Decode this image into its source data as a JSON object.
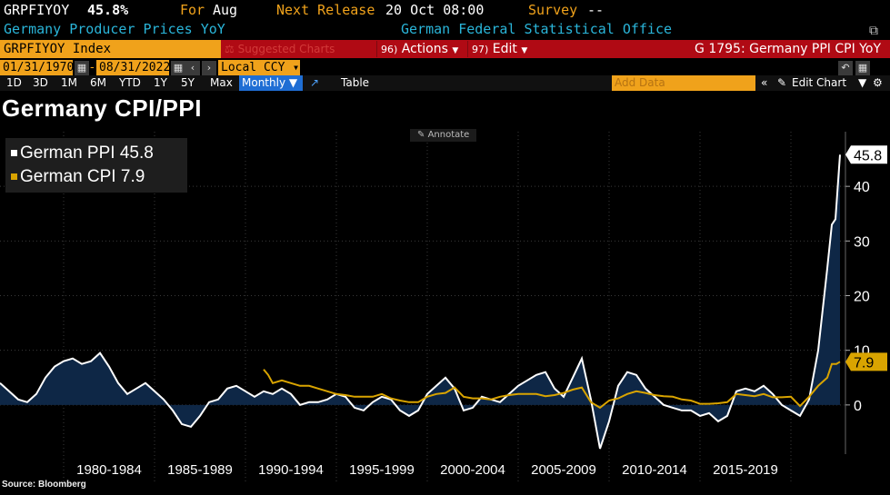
{
  "header": {
    "ticker": "GRPFIYOY",
    "value": "45.8%",
    "for_label": "For",
    "for_value": "Aug",
    "next_release_label": "Next Release",
    "next_release_value": "20 Oct 08:00",
    "survey_label": "Survey",
    "survey_value": "--",
    "description": "Germany Producer Prices YoY",
    "source": "German Federal Statistical Office"
  },
  "toolbar": {
    "ticker_field": "GRPFIYOY Index",
    "suggested": "⚖ Suggested Charts",
    "actions_num": "96)",
    "actions_label": "Actions",
    "edit_num": "97)",
    "edit_label": "Edit",
    "graph_title": "G 1795: Germany PPI CPI YoY"
  },
  "range": {
    "start_date": "01/31/1970",
    "end_date": "08/31/2022",
    "currency": "Local CCY"
  },
  "periods": [
    "1D",
    "3D",
    "1M",
    "6M",
    "YTD",
    "1Y",
    "5Y",
    "Max"
  ],
  "frequency": "Monthly ▼",
  "table_label": "Table",
  "add_data_placeholder": "Add Data",
  "edit_chart_label": "Edit Chart",
  "annotate_label": "Annotate",
  "chart_title": "Germany CPI/PPI",
  "source_note": "Source: Bloomberg",
  "colors": {
    "ppi": "#ffffff",
    "cpi": "#d9a400",
    "area": "#0e2746",
    "accent": "#f0a21b",
    "bar": "#b00a14"
  },
  "chart_data": {
    "type": "line",
    "x_unit": "year",
    "xlim": [
      1976.5,
      2023.0
    ],
    "ylim": [
      -9,
      50
    ],
    "y_ticks": [
      0,
      10,
      20,
      30,
      40
    ],
    "x_tick_labels": [
      "1980-1984",
      "1985-1989",
      "1990-1994",
      "1995-1999",
      "2000-2004",
      "2005-2009",
      "2010-2014",
      "2015-2019"
    ],
    "grid": true,
    "legend_position": "top-left",
    "series": [
      {
        "name": "German PPI",
        "last_value_label": "45.8",
        "last_value": 45.8,
        "points": [
          [
            1976.5,
            4
          ],
          [
            1977.0,
            2.5
          ],
          [
            1977.5,
            1
          ],
          [
            1978.0,
            0.5
          ],
          [
            1978.5,
            2
          ],
          [
            1979.0,
            5
          ],
          [
            1979.5,
            7
          ],
          [
            1980.0,
            8
          ],
          [
            1980.5,
            8.5
          ],
          [
            1981.0,
            7.5
          ],
          [
            1981.5,
            8
          ],
          [
            1982.0,
            9.5
          ],
          [
            1982.5,
            7
          ],
          [
            1983.0,
            4
          ],
          [
            1983.5,
            2
          ],
          [
            1984.0,
            3
          ],
          [
            1984.5,
            4
          ],
          [
            1985.0,
            2.5
          ],
          [
            1985.5,
            1
          ],
          [
            1986.0,
            -1
          ],
          [
            1986.5,
            -3.5
          ],
          [
            1987.0,
            -4
          ],
          [
            1987.5,
            -2
          ],
          [
            1988.0,
            0.5
          ],
          [
            1988.5,
            1
          ],
          [
            1989.0,
            3
          ],
          [
            1989.5,
            3.5
          ],
          [
            1990.0,
            2.5
          ],
          [
            1990.5,
            1.5
          ],
          [
            1991.0,
            2.5
          ],
          [
            1991.5,
            2
          ],
          [
            1992.0,
            3
          ],
          [
            1992.5,
            2
          ],
          [
            1993.0,
            0
          ],
          [
            1993.5,
            0.5
          ],
          [
            1994.0,
            0.5
          ],
          [
            1994.5,
            1
          ],
          [
            1995.0,
            2
          ],
          [
            1995.5,
            1.5
          ],
          [
            1996.0,
            -0.5
          ],
          [
            1996.5,
            -1
          ],
          [
            1997.0,
            0.5
          ],
          [
            1997.5,
            1.5
          ],
          [
            1998.0,
            1
          ],
          [
            1998.5,
            -1
          ],
          [
            1999.0,
            -2
          ],
          [
            1999.5,
            -1
          ],
          [
            2000.0,
            2
          ],
          [
            2000.5,
            3.5
          ],
          [
            2001.0,
            5
          ],
          [
            2001.5,
            3
          ],
          [
            2002.0,
            -1
          ],
          [
            2002.5,
            -0.5
          ],
          [
            2003.0,
            1.5
          ],
          [
            2003.5,
            1
          ],
          [
            2004.0,
            0.5
          ],
          [
            2004.5,
            2
          ],
          [
            2005.0,
            3.5
          ],
          [
            2005.5,
            4.5
          ],
          [
            2006.0,
            5.5
          ],
          [
            2006.5,
            6
          ],
          [
            2007.0,
            3
          ],
          [
            2007.5,
            1.5
          ],
          [
            2008.0,
            5
          ],
          [
            2008.5,
            8.5
          ],
          [
            2009.0,
            1
          ],
          [
            2009.5,
            -8
          ],
          [
            2010.0,
            -3
          ],
          [
            2010.5,
            3.5
          ],
          [
            2011.0,
            6
          ],
          [
            2011.5,
            5.5
          ],
          [
            2012.0,
            3
          ],
          [
            2012.5,
            1.5
          ],
          [
            2013.0,
            0
          ],
          [
            2013.5,
            -0.5
          ],
          [
            2014.0,
            -1
          ],
          [
            2014.5,
            -1
          ],
          [
            2015.0,
            -2
          ],
          [
            2015.5,
            -1.5
          ],
          [
            2016.0,
            -3
          ],
          [
            2016.5,
            -2
          ],
          [
            2017.0,
            2.5
          ],
          [
            2017.5,
            3
          ],
          [
            2018.0,
            2.5
          ],
          [
            2018.5,
            3.5
          ],
          [
            2019.0,
            2
          ],
          [
            2019.5,
            0
          ],
          [
            2020.0,
            -1
          ],
          [
            2020.5,
            -2
          ],
          [
            2021.0,
            1
          ],
          [
            2021.5,
            10
          ],
          [
            2022.0,
            25
          ],
          [
            2022.25,
            33
          ],
          [
            2022.45,
            34
          ],
          [
            2022.7,
            45.8
          ]
        ]
      },
      {
        "name": "German CPI",
        "last_value_label": "7.9",
        "last_value": 7.9,
        "points": [
          [
            1991.0,
            6.5
          ],
          [
            1991.25,
            5.5
          ],
          [
            1991.5,
            4
          ],
          [
            1992.0,
            4.5
          ],
          [
            1992.5,
            4
          ],
          [
            1993.0,
            3.5
          ],
          [
            1993.5,
            3.5
          ],
          [
            1994.0,
            3
          ],
          [
            1994.5,
            2.5
          ],
          [
            1995.0,
            2
          ],
          [
            1995.5,
            1.8
          ],
          [
            1996.0,
            1.5
          ],
          [
            1996.5,
            1.5
          ],
          [
            1997.0,
            1.5
          ],
          [
            1997.5,
            2
          ],
          [
            1998.0,
            1.2
          ],
          [
            1998.5,
            0.8
          ],
          [
            1999.0,
            0.5
          ],
          [
            1999.5,
            0.5
          ],
          [
            2000.0,
            1.5
          ],
          [
            2000.5,
            2
          ],
          [
            2001.0,
            2.2
          ],
          [
            2001.5,
            3.2
          ],
          [
            2002.0,
            1.5
          ],
          [
            2002.5,
            1.2
          ],
          [
            2003.0,
            1.2
          ],
          [
            2003.5,
            1
          ],
          [
            2004.0,
            1.5
          ],
          [
            2004.5,
            1.8
          ],
          [
            2005.0,
            2
          ],
          [
            2005.5,
            2
          ],
          [
            2006.0,
            2
          ],
          [
            2006.5,
            1.6
          ],
          [
            2007.0,
            1.8
          ],
          [
            2007.5,
            2.2
          ],
          [
            2008.0,
            2.8
          ],
          [
            2008.5,
            3.2
          ],
          [
            2009.0,
            0.5
          ],
          [
            2009.5,
            -0.5
          ],
          [
            2010.0,
            0.8
          ],
          [
            2010.5,
            1.2
          ],
          [
            2011.0,
            2
          ],
          [
            2011.5,
            2.5
          ],
          [
            2012.0,
            2.2
          ],
          [
            2012.5,
            1.8
          ],
          [
            2013.0,
            1.6
          ],
          [
            2013.5,
            1.5
          ],
          [
            2014.0,
            1
          ],
          [
            2014.5,
            0.8
          ],
          [
            2015.0,
            0.2
          ],
          [
            2015.5,
            0.2
          ],
          [
            2016.0,
            0.3
          ],
          [
            2016.5,
            0.5
          ],
          [
            2017.0,
            2
          ],
          [
            2017.5,
            1.8
          ],
          [
            2018.0,
            1.6
          ],
          [
            2018.5,
            2
          ],
          [
            2019.0,
            1.4
          ],
          [
            2019.5,
            1.4
          ],
          [
            2020.0,
            1.5
          ],
          [
            2020.5,
            -0.2
          ],
          [
            2021.0,
            1.5
          ],
          [
            2021.5,
            3.5
          ],
          [
            2022.0,
            5
          ],
          [
            2022.25,
            7.5
          ],
          [
            2022.5,
            7.5
          ],
          [
            2022.7,
            7.9
          ]
        ]
      }
    ]
  }
}
